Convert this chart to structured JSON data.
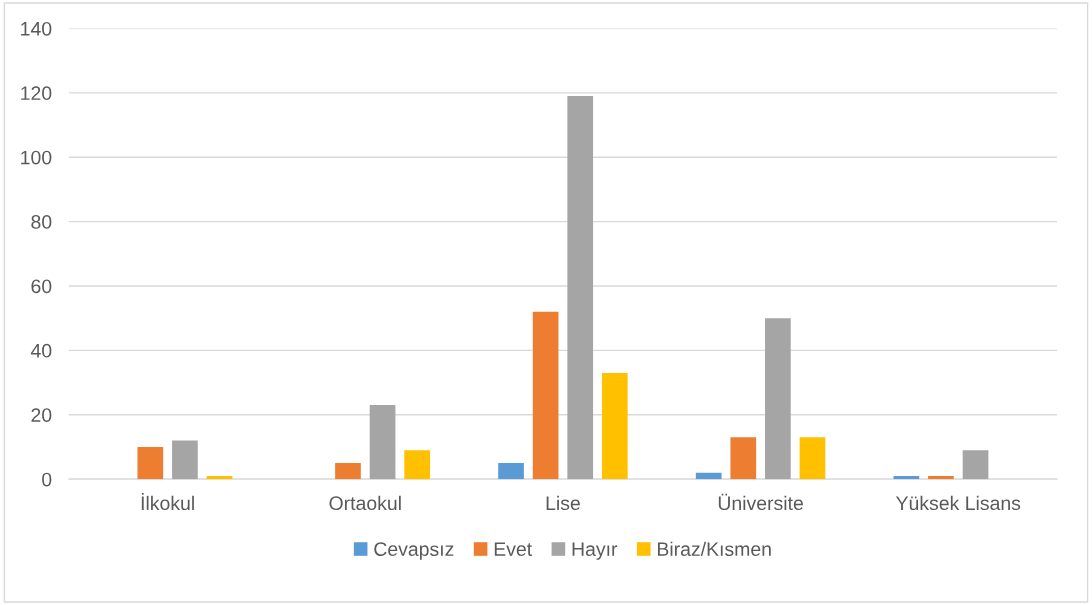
{
  "chart_data": {
    "type": "bar",
    "categories": [
      "İlkokul",
      "Ortaokul",
      "Lise",
      "Üniversite",
      "Yüksek Lisans"
    ],
    "series": [
      {
        "name": "Cevapsız",
        "color": "#5b9bd5",
        "values": [
          0,
          0,
          5,
          2,
          1
        ]
      },
      {
        "name": "Evet",
        "color": "#ed7d31",
        "values": [
          10,
          5,
          52,
          13,
          1
        ]
      },
      {
        "name": "Hayır",
        "color": "#a5a5a5",
        "values": [
          12,
          23,
          119,
          50,
          9
        ]
      },
      {
        "name": "Biraz/Kısmen",
        "color": "#ffc000",
        "values": [
          1,
          9,
          33,
          13,
          0
        ]
      }
    ],
    "ylim": [
      0,
      140
    ],
    "yticks": [
      0,
      20,
      40,
      60,
      80,
      100,
      120,
      140
    ],
    "grid": "y",
    "legend": "bottom"
  }
}
